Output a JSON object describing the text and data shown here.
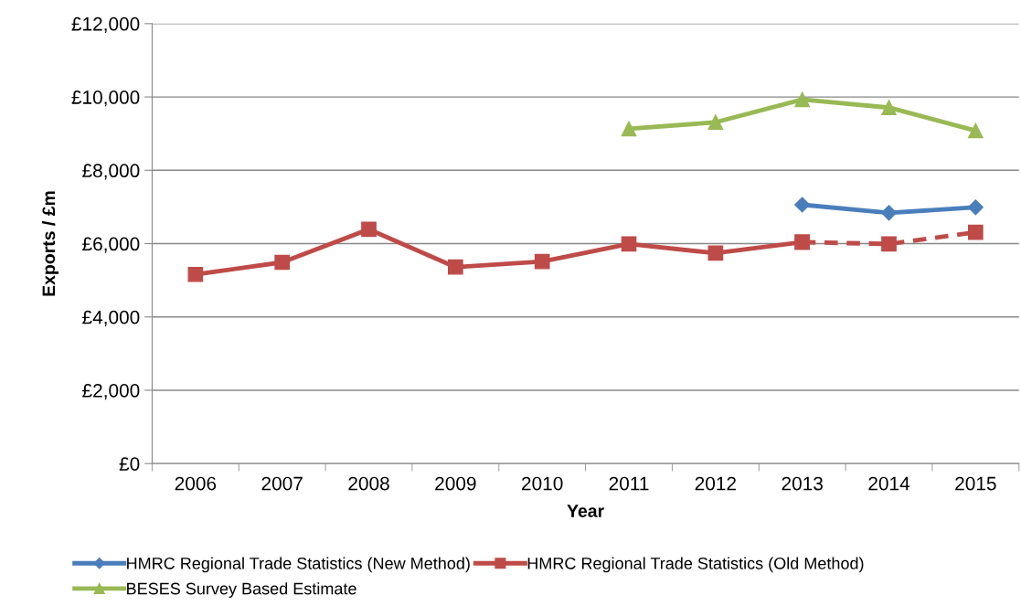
{
  "chart_data": {
    "type": "line",
    "xlabel": "Year",
    "ylabel": "Exports / £m",
    "categories": [
      "2006",
      "2007",
      "2008",
      "2009",
      "2010",
      "2011",
      "2012",
      "2013",
      "2014",
      "2015"
    ],
    "series": [
      {
        "name": "HMRC Regional Trade Statistics (New Method)",
        "color": "#4a7ebb",
        "marker": "diamond",
        "line_style": "solid",
        "values": [
          null,
          null,
          null,
          null,
          null,
          null,
          null,
          7060,
          6840,
          6990
        ]
      },
      {
        "name": "HMRC Regional Trade Statistics (Old Method)",
        "color": "#be4b48",
        "marker": "square",
        "line_style": "solid",
        "values": [
          5160,
          5490,
          6390,
          5360,
          5510,
          5990,
          5740,
          6040,
          null,
          null
        ]
      },
      {
        "color": "#be4b48",
        "marker": "square",
        "line_style": "dashed",
        "values": [
          null,
          null,
          null,
          null,
          null,
          null,
          null,
          6040,
          5990,
          6310
        ]
      },
      {
        "name": "BESES Survey Based Estimate",
        "color": "#98b954",
        "marker": "triangle",
        "line_style": "solid",
        "values": [
          null,
          null,
          null,
          null,
          null,
          9130,
          9310,
          9930,
          9710,
          9080
        ]
      }
    ],
    "ylim": [
      0,
      12000
    ],
    "yticks": [
      {
        "value": 0,
        "label": "£0"
      },
      {
        "value": 2000,
        "label": "£2,000"
      },
      {
        "value": 4000,
        "label": "£4,000"
      },
      {
        "value": 6000,
        "label": "£6,000"
      },
      {
        "value": 8000,
        "label": "£8,000"
      },
      {
        "value": 10000,
        "label": "£10,000"
      },
      {
        "value": 12000,
        "label": "£12,000"
      }
    ],
    "grid": "y",
    "legend": "bottom"
  }
}
